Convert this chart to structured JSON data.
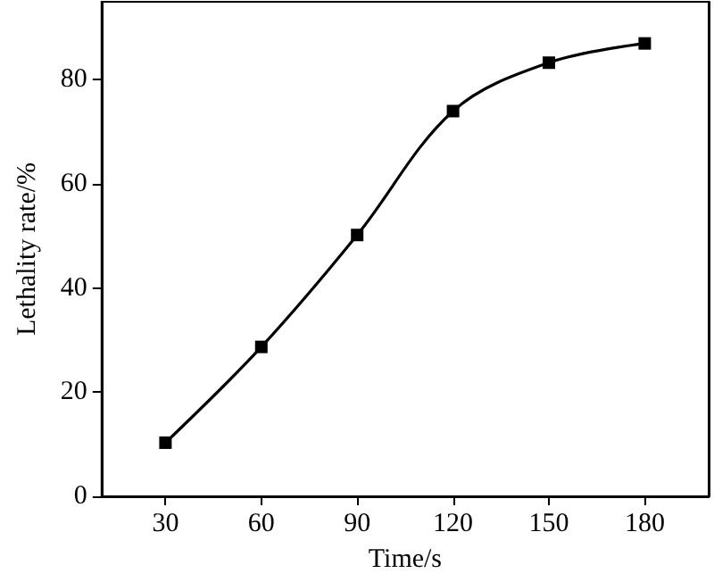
{
  "chart_data": {
    "type": "line",
    "xlabel": "Time/s",
    "ylabel": "Lethality rate/%",
    "x": [
      30,
      60,
      90,
      120,
      150,
      180
    ],
    "series": [
      {
        "color": "#000000",
        "values": [
          10.3,
          28.7,
          50.2,
          74.0,
          83.3,
          87.0
        ]
      }
    ],
    "xlim": [
      10,
      200
    ],
    "xticks": [
      30,
      60,
      90,
      120,
      150,
      180
    ],
    "ylim": [
      0,
      95
    ],
    "yticks": [
      0,
      20,
      40,
      60,
      80
    ],
    "grid": false,
    "marker": "square",
    "line_style": "solid"
  }
}
